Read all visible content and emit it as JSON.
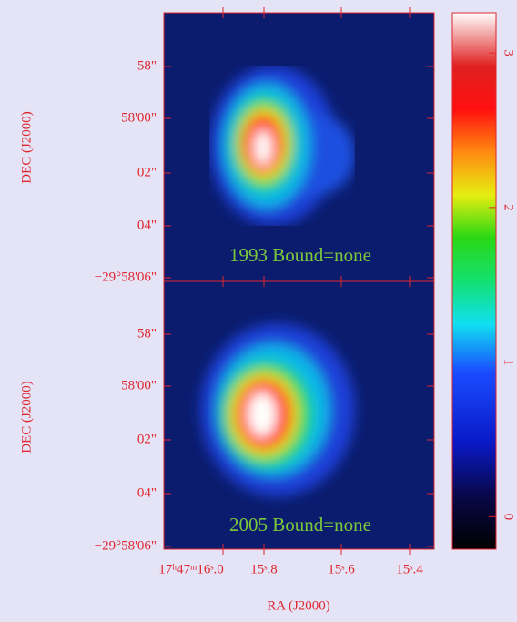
{
  "panels": [
    {
      "label": "1993 Bound=none",
      "dec_ticks": [
        "58\"",
        "58'00\"",
        "02\"",
        "04\"",
        "−29°58'06\""
      ]
    },
    {
      "label": "2005 Bound=none",
      "dec_ticks": [
        "58\"",
        "58'00\"",
        "02\"",
        "04\"",
        "−29°58'06\""
      ]
    }
  ],
  "ra_ticks": [
    "17ʰ47ᵐ16ˢ.0",
    "15ˢ.8",
    "15ˢ.6",
    "15ˢ.4"
  ],
  "x_label": "RA (J2000)",
  "y_label": "DEC (J2000)",
  "colorbar": {
    "range": [
      -0.21,
      3.26
    ],
    "ticks": [
      0,
      1,
      2,
      3
    ]
  }
}
